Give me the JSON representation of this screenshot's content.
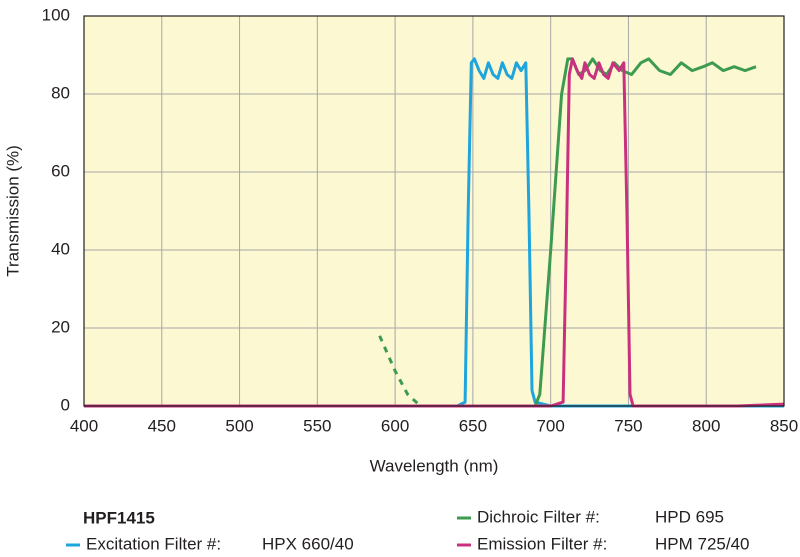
{
  "chart_data": {
    "type": "line",
    "xlabel": "Wavelength (nm)",
    "ylabel": "Transmission (%)",
    "xlim": [
      400,
      850
    ],
    "ylim": [
      0,
      100
    ],
    "xticks": [
      400,
      450,
      500,
      550,
      600,
      650,
      700,
      750,
      800,
      850
    ],
    "yticks": [
      0,
      20,
      40,
      60,
      80,
      100
    ],
    "grid": true,
    "legend": "bottom",
    "legend_title": "HPF1415",
    "series": [
      {
        "name": "Excitation Filter #:",
        "part": "HPX 660/40",
        "color": "#1ea5dd",
        "x": [
          400,
          640,
          645,
          647,
          649,
          651,
          654,
          657,
          660,
          663,
          666,
          669,
          672,
          675,
          678,
          681,
          684,
          686,
          688,
          690,
          700,
          850
        ],
        "values": [
          0,
          0,
          1,
          50,
          88,
          89,
          86,
          84,
          88,
          85,
          84,
          88,
          85,
          84,
          88,
          86,
          88,
          50,
          4,
          1,
          0,
          0
        ]
      },
      {
        "name": "Dichroic Filter #:",
        "part": "HPD 695",
        "color": "#3d9b4f",
        "dashed_below": 615,
        "x": [
          590,
          600,
          608,
          615,
          620,
          690,
          693,
          700,
          707,
          711,
          714,
          718,
          722,
          727,
          732,
          736,
          741,
          746,
          752,
          758,
          763,
          770,
          777,
          784,
          791,
          798,
          804,
          811,
          818,
          825,
          832
        ],
        "values": [
          18,
          9,
          3,
          0.5,
          0,
          0,
          3,
          40,
          80,
          89,
          89,
          85,
          86,
          89,
          86,
          85,
          88,
          86,
          85,
          88,
          89,
          86,
          85,
          88,
          86,
          87,
          88,
          86,
          87,
          86,
          87
        ]
      },
      {
        "name": "Emission Filter #:",
        "part": "HPM 725/40",
        "color": "#c9317f",
        "x": [
          400,
          700,
          708,
          710,
          712,
          714,
          717,
          720,
          722,
          725,
          728,
          731,
          734,
          737,
          740,
          744,
          747,
          749,
          751,
          753,
          820,
          850
        ],
        "values": [
          0,
          0,
          1,
          40,
          85,
          89,
          86,
          84,
          88,
          85,
          84,
          88,
          85,
          84,
          88,
          86,
          88,
          50,
          3,
          0,
          0,
          0.5
        ]
      }
    ]
  }
}
